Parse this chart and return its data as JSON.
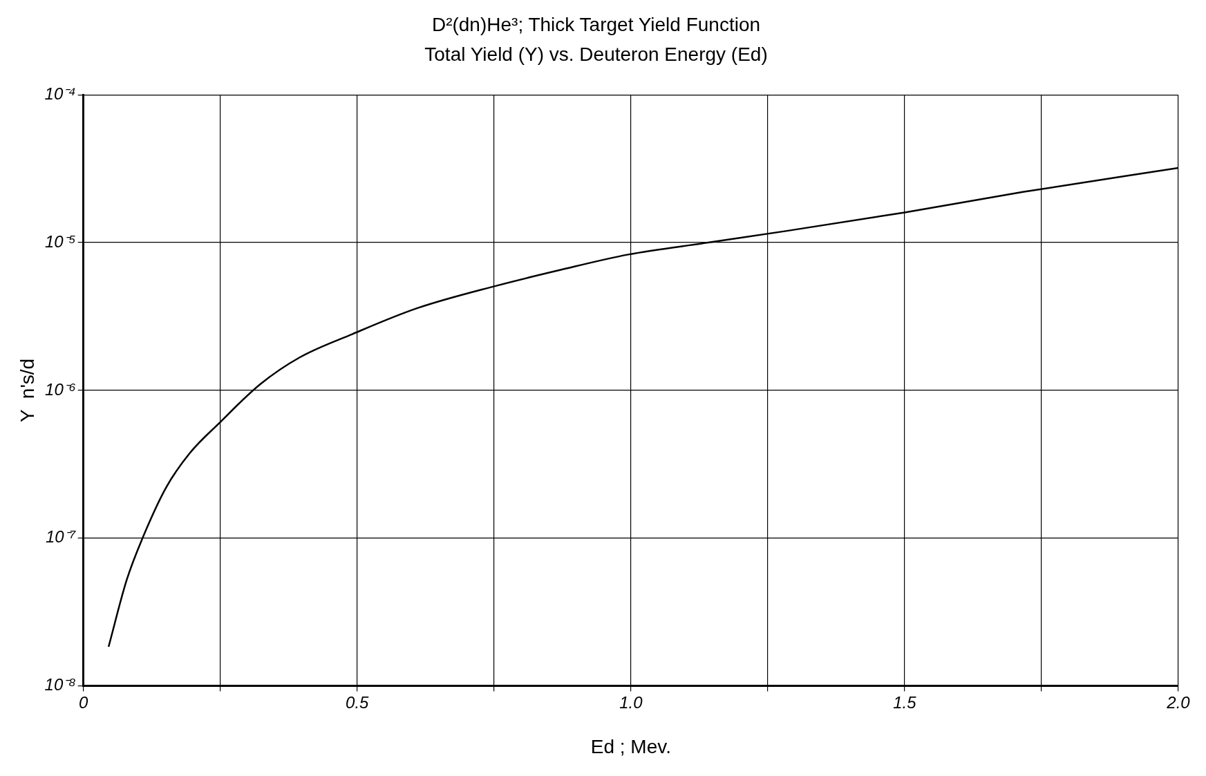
{
  "chart_data": {
    "type": "line",
    "title": "D²(dn)He³; Thick Target Yield Function",
    "subtitle": "Total Yield (Y) vs. Deuteron Energy (Ed)",
    "xlabel": "Ed ; Mev.",
    "ylabel": "Y  n's/d",
    "x": [
      0.046,
      0.079,
      0.108,
      0.151,
      0.194,
      0.248,
      0.323,
      0.395,
      0.491,
      0.61,
      0.754,
      0.869,
      0.995,
      1.141,
      1.285,
      1.5,
      1.716,
      2.0
    ],
    "series": [
      {
        "color": "#000000",
        "values": [
          1.84e-08,
          5.2e-08,
          1e-07,
          2.2e-07,
          3.75e-07,
          6e-07,
          1.1e-06,
          1.67e-06,
          2.4e-06,
          3.6e-06,
          5.1e-06,
          6.5e-06,
          8.3e-06,
          1e-05,
          1.2e-05,
          1.6e-05,
          2.2e-05,
          3.2e-05
        ]
      }
    ],
    "xlim": [
      0,
      2.0
    ],
    "xticks": [
      0,
      {
        "value": 0.25,
        "label": null
      },
      {
        "value": 0.5,
        "label": "0.5"
      },
      {
        "value": 0.75,
        "label": null
      },
      {
        "value": 1.0,
        "label": "1.0"
      },
      {
        "value": 1.25,
        "label": null
      },
      {
        "value": 1.5,
        "label": "1.5"
      },
      {
        "value": 1.75,
        "label": null
      },
      {
        "value": 2.0,
        "label": "2.0"
      }
    ],
    "ylim": [
      1e-08,
      0.0001
    ],
    "yticks": [
      {
        "value": 1e-08,
        "label": "10⁻⁸"
      },
      {
        "value": 1e-07,
        "label": "10⁻⁷"
      },
      {
        "value": 1e-06,
        "label": "10⁻⁶"
      },
      {
        "value": 1e-05,
        "label": "10⁻⁵"
      },
      {
        "value": 0.0001,
        "label": "10⁻⁴"
      }
    ],
    "log": "y",
    "grid": true,
    "legend": false,
    "marker": "none",
    "line_style": "solid"
  }
}
